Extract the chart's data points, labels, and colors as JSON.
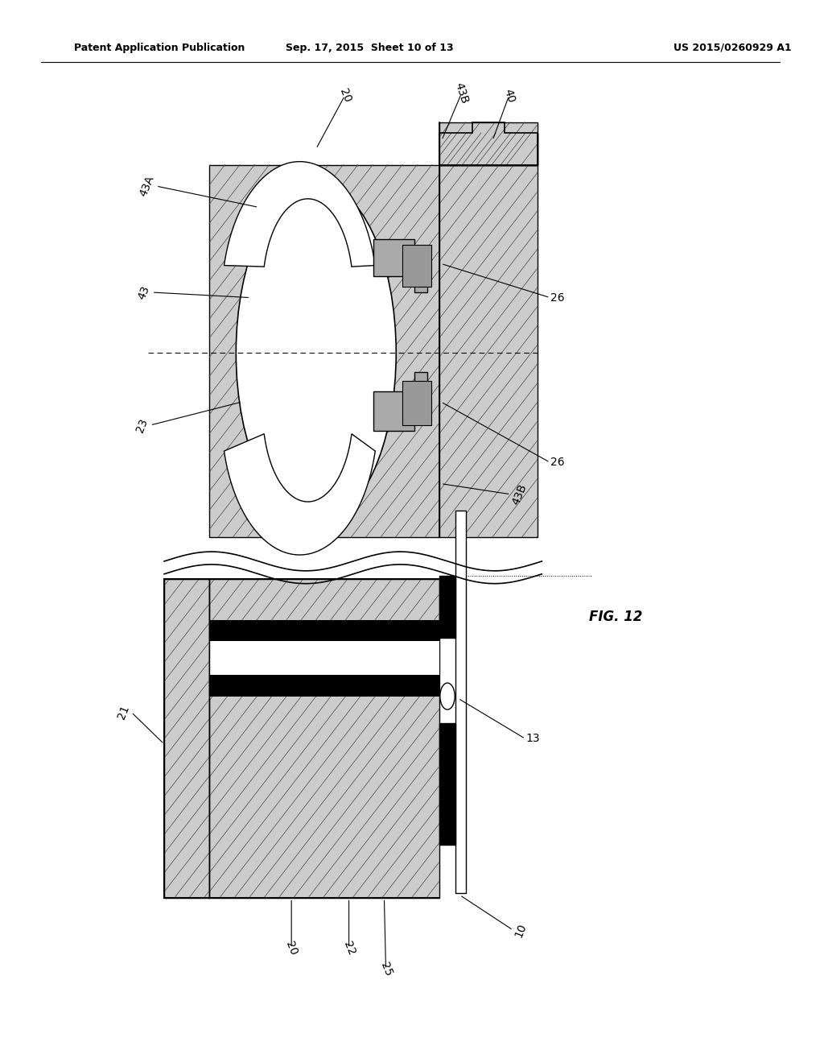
{
  "title_left": "Patent Application Publication",
  "title_mid": "Sep. 17, 2015  Sheet 10 of 13",
  "title_right": "US 2015/0260929 A1",
  "fig_label": "FIG. 12",
  "background": "#ffffff"
}
